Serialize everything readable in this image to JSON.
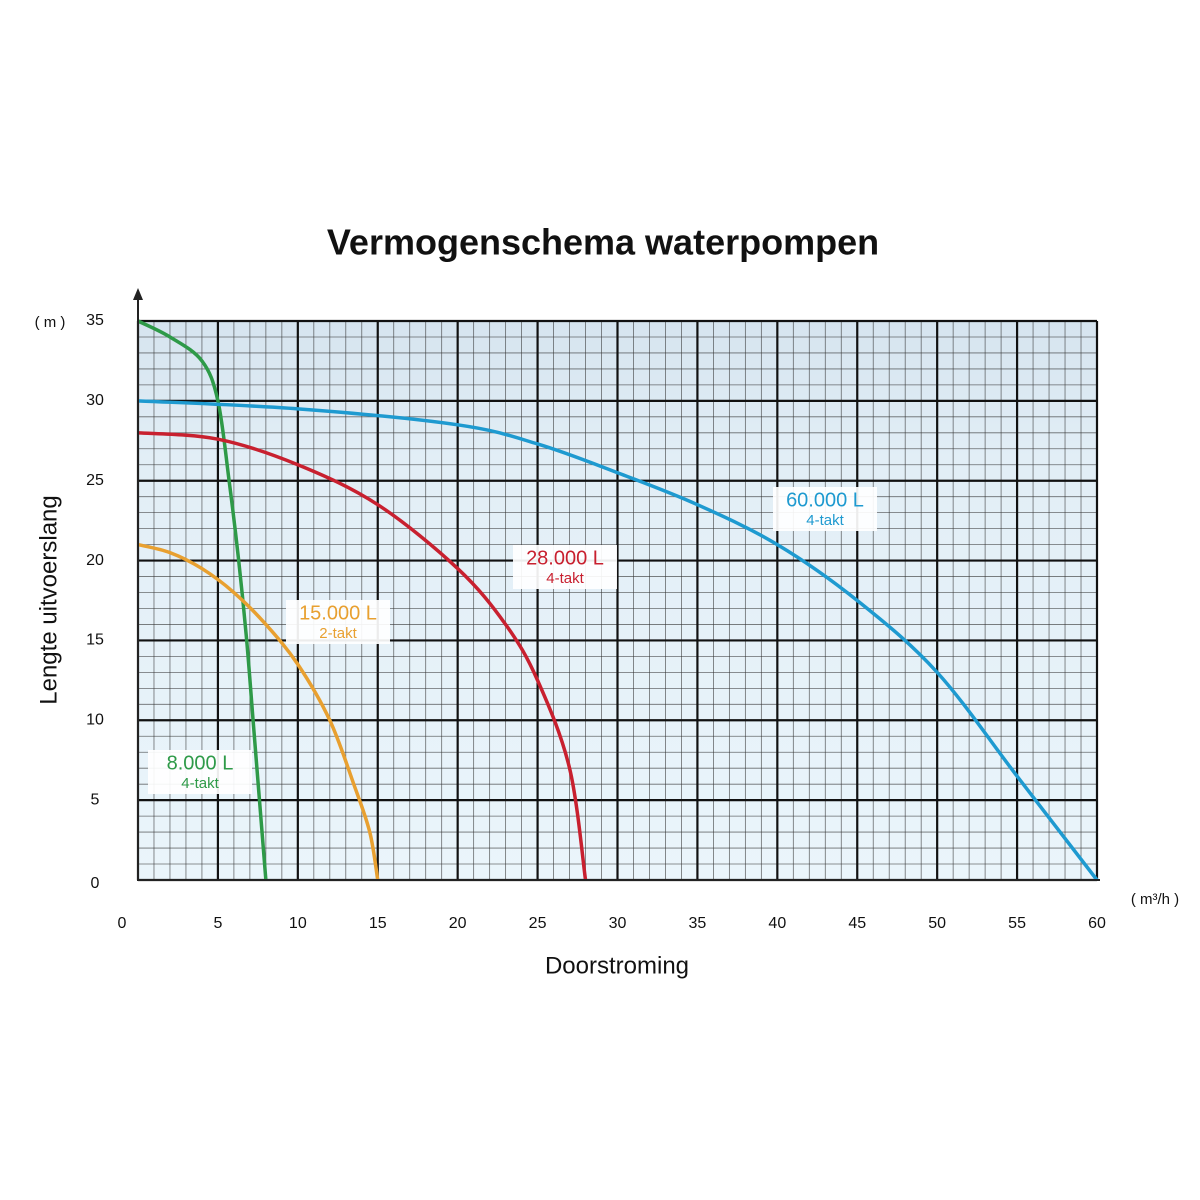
{
  "chart_data": {
    "type": "line",
    "title": "Vermogenschema waterpompen",
    "x_label": "Doorstroming",
    "y_label": "Lengte uitvoerslang",
    "x_unit": "( m³/h )",
    "y_unit": "( m )",
    "xlim": [
      0,
      60
    ],
    "xticks": [
      0,
      5,
      10,
      15,
      20,
      25,
      30,
      35,
      40,
      45,
      50,
      55,
      60
    ],
    "ylim": [
      0,
      35
    ],
    "yticks": [
      0,
      5,
      10,
      15,
      20,
      25,
      30,
      35
    ],
    "grid": true,
    "series": [
      {
        "name": "8.000 L",
        "note": "4-takt",
        "color": "#2e9a48",
        "x": [
          0,
          2,
          4,
          5,
          5.7,
          6.3,
          6.8,
          7.2,
          7.6,
          8
        ],
        "values": [
          35,
          34,
          32.5,
          30,
          25,
          20,
          15,
          10,
          5,
          0
        ]
      },
      {
        "name": "15.000 L",
        "note": "2-takt",
        "color": "#e8a030",
        "x": [
          0,
          2,
          4,
          6,
          8,
          10,
          12,
          13.5,
          14.5,
          15
        ],
        "values": [
          21,
          20.5,
          19.5,
          18,
          16,
          13.5,
          10,
          6,
          3,
          0
        ]
      },
      {
        "name": "28.000 L",
        "note": "4-takt",
        "color": "#c8202f",
        "x": [
          0,
          5,
          10,
          15,
          20,
          23,
          25,
          27,
          28
        ],
        "values": [
          28,
          27.6,
          26,
          23.5,
          19.5,
          16,
          12.5,
          7,
          0
        ]
      },
      {
        "name": "60.000 L",
        "note": "4-takt",
        "color": "#1e9ad0",
        "x": [
          0,
          10,
          20,
          25,
          30,
          35,
          40,
          45,
          50,
          55,
          60
        ],
        "values": [
          30,
          29.5,
          28.5,
          27.3,
          25.5,
          23.5,
          21,
          17.5,
          13,
          6.5,
          0
        ]
      }
    ]
  }
}
